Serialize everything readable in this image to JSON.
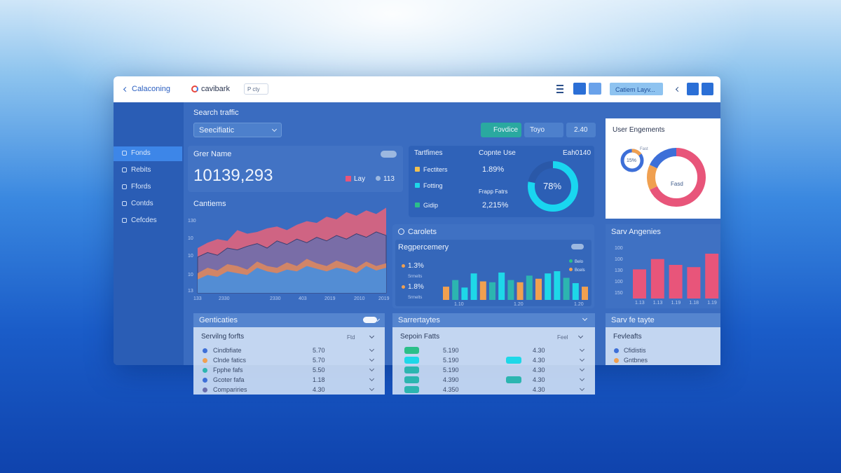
{
  "header": {
    "back": "Calaconing",
    "brand": "cavibark",
    "badge": "P cty",
    "layout_button": "Catiem Layv..."
  },
  "sidebar": [
    "Fonds",
    "Rebits",
    "Ffords",
    "Contds",
    "Cefcdes"
  ],
  "search": {
    "title": "Search traffic",
    "select": "Seecifiatic",
    "buttons": [
      "Fovdice",
      "Toyo",
      "2.40"
    ]
  },
  "stat": {
    "title": "Grer Name",
    "value": "10139,293",
    "legend": [
      "Lay",
      "113"
    ]
  },
  "traffic": {
    "title": "Tartfimes",
    "rows": [
      "Fectiters",
      "Fotting",
      "Gidip"
    ],
    "use_title": "Copnte Use",
    "use_values": [
      "1.89%",
      "Frapp Fatrs",
      "2,215%"
    ],
    "side_title": "Eah0140",
    "donut": {
      "values": [
        78
      ],
      "value_labels": [
        "78%"
      ],
      "color": "#19d6f0"
    }
  },
  "engagement": {
    "title": "User Engements",
    "small_donut": {
      "caption": "Fast",
      "values": [
        15
      ],
      "value_labels": [
        "15%"
      ],
      "color": "#f0a050"
    },
    "big_donut": {
      "label": "Fasd",
      "values": [
        68,
        14,
        18
      ],
      "colors": [
        "#e8557a",
        "#f0a050",
        "#3d6fd8"
      ]
    }
  },
  "area_chart": {
    "title": "Cantiems",
    "y_labels": [
      "130",
      "10",
      "10",
      "10",
      "13"
    ],
    "x_labels": [
      "133",
      "2330",
      "2330",
      "403",
      "2019",
      "2010",
      "2019"
    ],
    "ylim": [
      0,
      100
    ],
    "series": [
      {
        "color": "#e0647c",
        "values": [
          50,
          56,
          60,
          58,
          70,
          66,
          68,
          72,
          74,
          70,
          76,
          80,
          78,
          85,
          82,
          90,
          86,
          92,
          88,
          95
        ]
      },
      {
        "color": "#6a6fae",
        "values": [
          40,
          45,
          42,
          50,
          48,
          52,
          55,
          50,
          58,
          54,
          60,
          56,
          62,
          58,
          64,
          60,
          66,
          62,
          68,
          64
        ]
      },
      {
        "color": "#e08a5c",
        "values": [
          22,
          28,
          25,
          32,
          30,
          26,
          35,
          30,
          28,
          34,
          30,
          38,
          33,
          30,
          36,
          32,
          28,
          35,
          30,
          33
        ]
      },
      {
        "color": "#3d8ee8",
        "values": [
          15,
          20,
          18,
          24,
          22,
          20,
          28,
          24,
          22,
          26,
          24,
          30,
          27,
          24,
          28,
          26,
          22,
          30,
          25,
          28
        ]
      }
    ]
  },
  "bar_chart": {
    "title": "Carolets",
    "subtitle": "Regpercemery",
    "legend": [
      "1.3%",
      "1.8%"
    ],
    "legend_notes": [
      "Srmelts",
      "Srmelts"
    ],
    "mini_legend": [
      "Belo",
      "Bcels"
    ],
    "x_labels": [
      "1.10",
      "1.20",
      "1.20"
    ],
    "ylim": [
      0,
      100
    ],
    "values": [
      30,
      45,
      28,
      60,
      42,
      40,
      62,
      45,
      40,
      55,
      48,
      60,
      65,
      50,
      38,
      30
    ],
    "colors": [
      "#f0a050",
      "#2cb5b0",
      "#1ed8e8",
      "#1ed8e8",
      "#f0a050",
      "#2cb5b0",
      "#1ed8e8",
      "#2cb5b0",
      "#f0a050",
      "#2cb5b0",
      "#f0a050",
      "#1ed8e8",
      "#1ed8e8",
      "#2cb5b0",
      "#1ed8e8",
      "#f0a050"
    ]
  },
  "angle_chart": {
    "title": "Sarv Angenies",
    "y_labels": [
      "100",
      "100",
      "130",
      "100",
      "150"
    ],
    "x_labels": [
      "1.13",
      "1.13",
      "1.19",
      "1.18",
      "1.19"
    ],
    "ylim": [
      0,
      100
    ],
    "values": [
      65,
      88,
      75,
      70,
      100
    ],
    "color": "#e8557a"
  },
  "list_left": {
    "title": "Genticaties",
    "header": "Servilng forfts",
    "header_right": "Ftd",
    "rows": [
      {
        "label": "Cindbfiate",
        "value": "5.70",
        "dot": "#3d6fd8"
      },
      {
        "label": "Clnde fatics",
        "value": "5.70",
        "dot": "#f0a050"
      },
      {
        "label": "Fpphe fafs",
        "value": "5.50",
        "dot": "#2cb5b0"
      },
      {
        "label": "Gcoter fafa",
        "value": "1.18",
        "dot": "#3d6fd8"
      },
      {
        "label": "Compariries",
        "value": "4.30",
        "dot": "#6a6fae"
      }
    ]
  },
  "list_mid": {
    "title": "Sarrertaytes",
    "header": "Sepoin Fatts",
    "header_right": "Feel",
    "rows": [
      {
        "value": "5.190",
        "value2": "4.30",
        "pill": "#2bbf8a",
        "pill2": false
      },
      {
        "value": "5.190",
        "value2": "4.30",
        "pill": "#1ed8e8",
        "pill2": true
      },
      {
        "value": "5.190",
        "value2": "4.30",
        "pill": "#2cb5b0",
        "pill2": false
      },
      {
        "value": "4.390",
        "value2": "4.30",
        "pill": "#2cb5b0",
        "pill2": true
      },
      {
        "value": "4.350",
        "value2": "4.30",
        "pill": "#2cb5b0",
        "pill2": false
      }
    ]
  },
  "list_right": {
    "title": "Sarv fe tayte",
    "header": "Fevleafts",
    "rows": [
      "Cfidistis",
      "Gntbnes"
    ]
  }
}
